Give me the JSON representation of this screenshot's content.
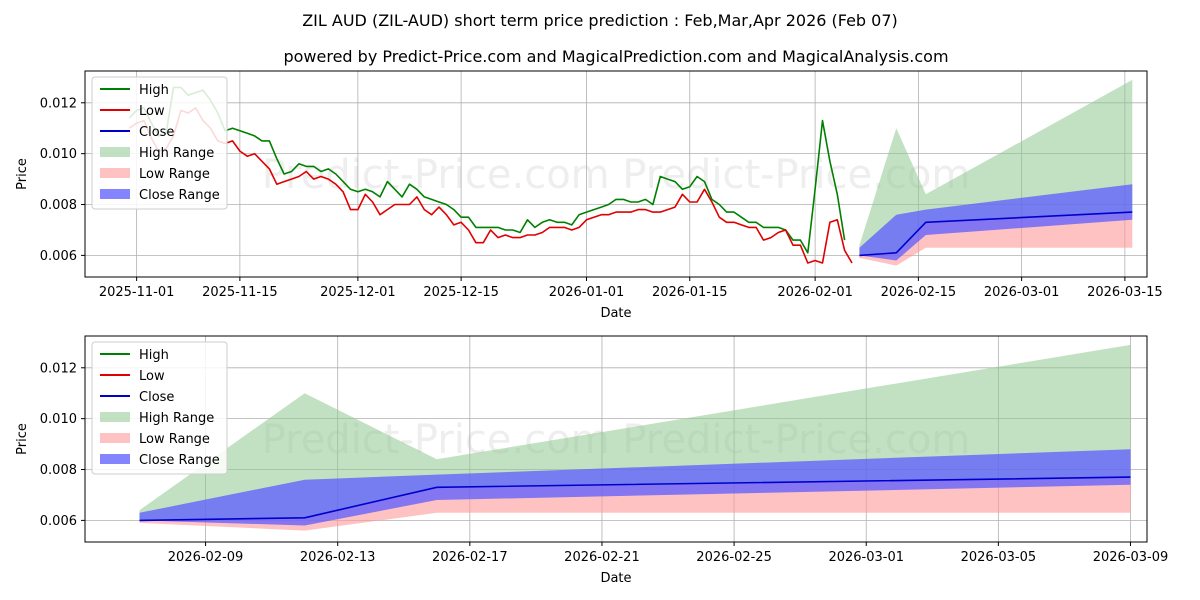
{
  "title": "ZIL AUD (ZIL-AUD) short term price prediction : Feb,Mar,Apr 2026 (Feb 07)",
  "subtitle": "powered by Predict-Price.com and MagicalPrediction.com and MagicalAnalysis.com",
  "watermark": "Predict-Price.com",
  "colors": {
    "high": "#008000",
    "low": "#e00000",
    "close": "#0000cc",
    "high_range": "#8fc98f",
    "low_range": "#ff9a9a",
    "close_range": "#5b5bff",
    "grid": "#b0b0b0"
  },
  "chart_data": [
    {
      "id": "history",
      "type": "line",
      "xlabel": "Date",
      "ylabel": "Price",
      "xlim": [
        -7,
        137
      ],
      "ylim": [
        0.00515,
        0.01325
      ],
      "grid": true,
      "legend_position": "top-left",
      "legend": [
        "High",
        "Low",
        "Close",
        "High Range",
        "Low Range",
        "Close Range"
      ],
      "x_ticks": [
        {
          "x": 0,
          "label": "2025-11-01"
        },
        {
          "x": 14,
          "label": "2025-11-15"
        },
        {
          "x": 30,
          "label": "2025-12-01"
        },
        {
          "x": 44,
          "label": "2025-12-15"
        },
        {
          "x": 61,
          "label": "2026-01-01"
        },
        {
          "x": 75,
          "label": "2026-01-15"
        },
        {
          "x": 92,
          "label": "2026-02-01"
        },
        {
          "x": 106,
          "label": "2026-02-15"
        },
        {
          "x": 120,
          "label": "2026-03-01"
        },
        {
          "x": 134,
          "label": "2026-03-15"
        }
      ],
      "y_ticks": [
        {
          "y": 0.006,
          "label": "0.006"
        },
        {
          "y": 0.008,
          "label": "0.008"
        },
        {
          "y": 0.01,
          "label": "0.010"
        },
        {
          "y": 0.012,
          "label": "0.012"
        }
      ],
      "series": [
        {
          "name": "High",
          "x": [
            -1,
            0,
            1,
            2,
            3,
            4,
            5,
            6,
            7,
            8,
            9,
            10,
            11,
            12,
            13,
            14,
            15,
            16,
            17,
            18,
            19,
            20,
            21,
            22,
            23,
            24,
            25,
            26,
            27,
            28,
            29,
            30,
            31,
            32,
            33,
            34,
            35,
            36,
            37,
            38,
            39,
            40,
            41,
            42,
            43,
            44,
            45,
            46,
            47,
            48,
            49,
            50,
            51,
            52,
            53,
            54,
            55,
            56,
            57,
            58,
            59,
            60,
            61,
            62,
            63,
            64,
            65,
            66,
            67,
            68,
            69,
            70,
            71,
            72,
            73,
            74,
            75,
            76,
            77,
            78,
            79,
            80,
            81,
            82,
            83,
            84,
            85,
            86,
            87,
            88,
            89,
            90,
            91,
            92,
            93,
            94,
            95,
            96
          ],
          "values": [
            0.0114,
            0.0117,
            0.0118,
            0.0112,
            0.0107,
            0.0108,
            0.0126,
            0.0126,
            0.0123,
            0.0124,
            0.0125,
            0.0121,
            0.0116,
            0.0109,
            0.011,
            0.0109,
            0.0108,
            0.0107,
            0.0105,
            0.0105,
            0.0098,
            0.0092,
            0.0093,
            0.0096,
            0.0095,
            0.0095,
            0.0093,
            0.0094,
            0.0092,
            0.0089,
            0.0086,
            0.0085,
            0.0086,
            0.0085,
            0.0083,
            0.0089,
            0.0086,
            0.0083,
            0.0088,
            0.0086,
            0.0083,
            0.0082,
            0.0081,
            0.008,
            0.0078,
            0.0075,
            0.0075,
            0.0071,
            0.0071,
            0.0071,
            0.0071,
            0.007,
            0.007,
            0.0069,
            0.0074,
            0.0071,
            0.0073,
            0.0074,
            0.0073,
            0.0073,
            0.0072,
            0.0076,
            0.0077,
            0.0078,
            0.0079,
            0.008,
            0.0082,
            0.0082,
            0.0081,
            0.0081,
            0.0082,
            0.008,
            0.0091,
            0.009,
            0.0089,
            0.0086,
            0.0087,
            0.0091,
            0.0089,
            0.0082,
            0.008,
            0.0077,
            0.0077,
            0.0075,
            0.0073,
            0.0073,
            0.0071,
            0.0071,
            0.0071,
            0.007,
            0.0066,
            0.0066,
            0.0061,
            0.0086,
            0.0113,
            0.0097,
            0.0084,
            0.0066
          ]
        },
        {
          "name": "Low",
          "x": [
            -1,
            0,
            1,
            2,
            3,
            4,
            5,
            6,
            7,
            8,
            9,
            10,
            11,
            12,
            13,
            14,
            15,
            16,
            17,
            18,
            19,
            20,
            21,
            22,
            23,
            24,
            25,
            26,
            27,
            28,
            29,
            30,
            31,
            32,
            33,
            34,
            35,
            36,
            37,
            38,
            39,
            40,
            41,
            42,
            43,
            44,
            45,
            46,
            47,
            48,
            49,
            50,
            51,
            52,
            53,
            54,
            55,
            56,
            57,
            58,
            59,
            60,
            61,
            62,
            63,
            64,
            65,
            66,
            67,
            68,
            69,
            70,
            71,
            72,
            73,
            74,
            75,
            76,
            77,
            78,
            79,
            80,
            81,
            82,
            83,
            84,
            85,
            86,
            87,
            88,
            89,
            90,
            91,
            92,
            93,
            94,
            95,
            96,
            97
          ],
          "values": [
            0.011,
            0.0112,
            0.0113,
            0.0106,
            0.0101,
            0.0102,
            0.0107,
            0.0117,
            0.0116,
            0.0118,
            0.0113,
            0.011,
            0.0105,
            0.0104,
            0.0105,
            0.0101,
            0.0099,
            0.01,
            0.0097,
            0.0094,
            0.0088,
            0.0089,
            0.009,
            0.0091,
            0.0093,
            0.009,
            0.0091,
            0.009,
            0.0088,
            0.0085,
            0.0078,
            0.0078,
            0.0084,
            0.0081,
            0.0076,
            0.0078,
            0.008,
            0.008,
            0.008,
            0.0083,
            0.0078,
            0.0076,
            0.0079,
            0.0076,
            0.0072,
            0.0073,
            0.007,
            0.0065,
            0.0065,
            0.007,
            0.0067,
            0.0068,
            0.0067,
            0.0067,
            0.0068,
            0.0068,
            0.0069,
            0.0071,
            0.0071,
            0.0071,
            0.007,
            0.0071,
            0.0074,
            0.0075,
            0.0076,
            0.0076,
            0.0077,
            0.0077,
            0.0077,
            0.0078,
            0.0078,
            0.0077,
            0.0077,
            0.0078,
            0.0079,
            0.0084,
            0.0081,
            0.0081,
            0.0086,
            0.0081,
            0.0075,
            0.0073,
            0.0073,
            0.0072,
            0.0071,
            0.0071,
            0.0066,
            0.0067,
            0.0069,
            0.007,
            0.0064,
            0.0064,
            0.0057,
            0.0058,
            0.0057,
            0.0073,
            0.0074,
            0.0062,
            0.0057
          ]
        },
        {
          "name": "Close",
          "x": [
            98,
            103,
            107,
            135
          ],
          "values": [
            0.006,
            0.0061,
            0.0073,
            0.0077
          ]
        }
      ],
      "ranges": [
        {
          "name": "High Range",
          "x": [
            98,
            103,
            107,
            135
          ],
          "upper": [
            0.0064,
            0.011,
            0.0084,
            0.0129
          ],
          "lower": [
            0.006,
            0.0061,
            0.0073,
            0.0077
          ]
        },
        {
          "name": "Low Range",
          "x": [
            98,
            103,
            107,
            135
          ],
          "upper": [
            0.006,
            0.0061,
            0.0073,
            0.0077
          ],
          "lower": [
            0.0059,
            0.0056,
            0.0063,
            0.0063
          ]
        },
        {
          "name": "Close Range",
          "x": [
            98,
            103,
            107,
            135
          ],
          "upper": [
            0.0063,
            0.0076,
            0.0078,
            0.0088
          ],
          "lower": [
            0.006,
            0.0058,
            0.0068,
            0.0074
          ]
        }
      ]
    },
    {
      "id": "forecast",
      "type": "line",
      "xlabel": "Date",
      "ylabel": "Price",
      "xlim": [
        -1.65,
        30.5
      ],
      "ylim": [
        0.00515,
        0.01325
      ],
      "grid": true,
      "legend_position": "top-left",
      "legend": [
        "High",
        "Low",
        "Close",
        "High Range",
        "Low Range",
        "Close Range"
      ],
      "x_ticks": [
        {
          "x": 2,
          "label": "2026-02-09"
        },
        {
          "x": 6,
          "label": "2026-02-13"
        },
        {
          "x": 10,
          "label": "2026-02-17"
        },
        {
          "x": 14,
          "label": "2026-02-21"
        },
        {
          "x": 18,
          "label": "2026-02-25"
        },
        {
          "x": 22,
          "label": "2026-03-01"
        },
        {
          "x": 26,
          "label": "2026-03-05"
        },
        {
          "x": 30,
          "label": "2026-03-09"
        }
      ],
      "y_ticks": [
        {
          "y": 0.006,
          "label": "0.006"
        },
        {
          "y": 0.008,
          "label": "0.008"
        },
        {
          "y": 0.01,
          "label": "0.010"
        },
        {
          "y": 0.012,
          "label": "0.012"
        }
      ],
      "series": [
        {
          "name": "Close",
          "x": [
            0,
            5,
            9,
            30
          ],
          "values": [
            0.006,
            0.0061,
            0.0073,
            0.0077
          ]
        }
      ],
      "ranges": [
        {
          "name": "High Range",
          "x": [
            0,
            5,
            9,
            30
          ],
          "upper": [
            0.0064,
            0.011,
            0.0084,
            0.0129
          ],
          "lower": [
            0.006,
            0.0061,
            0.0073,
            0.0077
          ]
        },
        {
          "name": "Low Range",
          "x": [
            0,
            5,
            9,
            30
          ],
          "upper": [
            0.006,
            0.0061,
            0.0073,
            0.0077
          ],
          "lower": [
            0.0059,
            0.0056,
            0.0063,
            0.0063
          ]
        },
        {
          "name": "Close Range",
          "x": [
            0,
            5,
            9,
            30
          ],
          "upper": [
            0.0063,
            0.0076,
            0.0078,
            0.0088
          ],
          "lower": [
            0.006,
            0.0058,
            0.0068,
            0.0074
          ]
        }
      ]
    }
  ]
}
